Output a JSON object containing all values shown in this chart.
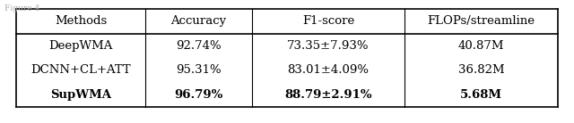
{
  "title_text": "Figure 4",
  "headers": [
    "Methods",
    "Accuracy",
    "F1-score",
    "FLOPs/streamline"
  ],
  "rows": [
    [
      "DeepWMA",
      "92.74%",
      "73.35±7.93%",
      "40.87M"
    ],
    [
      "DCNN+CL+ATT",
      "95.31%",
      "83.01±4.09%",
      "36.82M"
    ],
    [
      "SupWMA",
      "96.79%",
      "88.79±2.91%",
      "5.68M"
    ]
  ],
  "bold_row": 2,
  "background_color": "#ffffff",
  "fontsize": 9.5,
  "fig_width": 6.4,
  "fig_height": 1.38
}
